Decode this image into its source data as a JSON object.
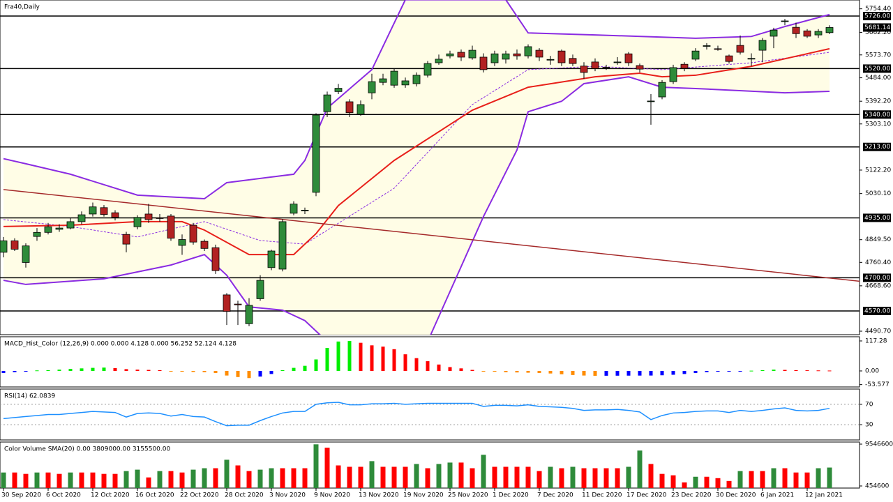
{
  "chart_data": [
    {
      "type": "candlestick",
      "title": "Fra40,Daily",
      "categories": [
        "30 Sep 2020",
        null,
        null,
        null,
        "6 Oct 2020",
        null,
        null,
        null,
        "12 Oct 2020",
        null,
        null,
        null,
        "16 Oct 2020",
        null,
        null,
        null,
        "22 Oct 2020",
        null,
        null,
        null,
        "28 Oct 2020",
        null,
        null,
        null,
        "3 Nov 2020",
        null,
        null,
        null,
        "9 Nov 2020",
        null,
        null,
        null,
        "13 Nov 2020",
        null,
        null,
        null,
        "19 Nov 2020",
        null,
        null,
        null,
        "25 Nov 2020",
        null,
        null,
        null,
        "1 Dec 2020",
        null,
        null,
        null,
        "7 Dec 2020",
        null,
        null,
        null,
        "11 Dec 2020",
        null,
        null,
        null,
        "17 Dec 2020",
        null,
        null,
        null,
        "23 Dec 2020",
        null,
        null,
        null,
        "30 Dec 2020",
        null,
        null,
        null,
        "6 Jan 2021",
        null,
        null,
        null,
        "12 Jan 2021",
        null,
        null
      ],
      "open": [
        4800,
        4845,
        4760,
        4862,
        4878,
        4890,
        4895,
        4920,
        4950,
        4975,
        4955,
        4870,
        4900,
        4950,
        4935,
        4942,
        4827,
        4906,
        4843,
        4818,
        4633,
        4597,
        4520,
        4618,
        4740,
        4734,
        4953,
        4963,
        5035,
        5351,
        5430,
        5390,
        5341,
        5425,
        5466,
        5455,
        5456,
        5461,
        5494,
        5543,
        5570,
        5584,
        5562,
        5565,
        5543,
        5557,
        5578,
        5570,
        5592,
        5554,
        5589,
        5560,
        5530,
        5546,
        5525,
        5546,
        5578,
        5532,
        5393,
        5409,
        5469,
        5537,
        5557,
        5609,
        5598,
        5570,
        5611,
        5559,
        5592,
        5647,
        5706,
        5682,
        5668,
        5652,
        5661
      ],
      "high": [
        4860,
        4855,
        4835,
        4895,
        4915,
        4910,
        4935,
        4960,
        4995,
        4985,
        4965,
        4880,
        4945,
        4990,
        4950,
        4950,
        4870,
        4915,
        4850,
        4830,
        4640,
        4610,
        4620,
        4710,
        4810,
        4930,
        5000,
        4975,
        5345,
        5430,
        5460,
        5400,
        5395,
        5500,
        5500,
        5520,
        5485,
        5505,
        5550,
        5575,
        5590,
        5595,
        5610,
        5580,
        5590,
        5590,
        5595,
        5615,
        5600,
        5570,
        5595,
        5575,
        5545,
        5560,
        5535,
        5565,
        5585,
        5540,
        5420,
        5475,
        5535,
        5545,
        5600,
        5620,
        5610,
        5575,
        5650,
        5580,
        5640,
        5680,
        5715,
        5700,
        5675,
        5675,
        5690
      ],
      "low": [
        4780,
        4805,
        4740,
        4845,
        4870,
        4880,
        4890,
        4910,
        4940,
        4940,
        4925,
        4800,
        4890,
        4915,
        4920,
        4845,
        4790,
        4830,
        4805,
        4715,
        4515,
        4515,
        4510,
        4610,
        4730,
        4725,
        4945,
        4950,
        5020,
        5330,
        5420,
        5330,
        5335,
        5400,
        5455,
        5445,
        5445,
        5450,
        5485,
        5535,
        5560,
        5550,
        5555,
        5505,
        5530,
        5540,
        5555,
        5560,
        5550,
        5535,
        5530,
        5530,
        5480,
        5510,
        5515,
        5535,
        5530,
        5505,
        5300,
        5400,
        5460,
        5510,
        5550,
        5595,
        5590,
        5540,
        5575,
        5530,
        5545,
        5600,
        5690,
        5640,
        5640,
        5640,
        5655
      ],
      "close": [
        4845,
        4812,
        4825,
        4878,
        4900,
        4895,
        4920,
        4947,
        4978,
        4948,
        4937,
        4832,
        4937,
        4928,
        4933,
        4855,
        4850,
        4840,
        4815,
        4728,
        4568,
        4594,
        4592,
        4690,
        4805,
        4920,
        4989,
        4965,
        5338,
        5417,
        5443,
        5347,
        5379,
        5469,
        5480,
        5510,
        5472,
        5494,
        5540,
        5557,
        5578,
        5565,
        5592,
        5516,
        5578,
        5578,
        5570,
        5606,
        5565,
        5556,
        5543,
        5540,
        5505,
        5520,
        5524,
        5546,
        5543,
        5518,
        5393,
        5466,
        5524,
        5521,
        5589,
        5610,
        5597,
        5548,
        5584,
        5560,
        5631,
        5671,
        5707,
        5657,
        5647,
        5666,
        5681.14
      ],
      "up_color": "#2e8b3a",
      "down_color": "#b22222",
      "band_fill": "#fffde6",
      "ylim": [
        4477,
        5789
      ],
      "yticks": [
        {
          "value": 5754.4,
          "label": "5754.40"
        },
        {
          "value": 5662.2,
          "label": "5662.20"
        },
        {
          "value": 5573.7,
          "label": "5573.70"
        },
        {
          "value": 5484,
          "label": "5484.00"
        },
        {
          "value": 5392.2,
          "label": "5392.20"
        },
        {
          "value": 5303.1,
          "label": "5303.10"
        },
        {
          "value": 5122.2,
          "label": "5122.20"
        },
        {
          "value": 5030.1,
          "label": "5030.10"
        },
        {
          "value": 4849.5,
          "label": "4849.50"
        },
        {
          "value": 4760.4,
          "label": "4760.40"
        },
        {
          "value": 4668.6,
          "label": "4668.60"
        },
        {
          "value": 4490.7,
          "label": "4490.70"
        }
      ],
      "levels": [
        {
          "value": 5726,
          "label": "5726.00"
        },
        {
          "value": 5520,
          "label": "5520.00"
        },
        {
          "value": 5340,
          "label": "5340.00"
        },
        {
          "value": 5213,
          "label": "5213.00"
        },
        {
          "value": 4935,
          "label": "4935.00"
        },
        {
          "value": 4700,
          "label": "4700.00"
        },
        {
          "value": 4570,
          "label": "4570.00"
        }
      ],
      "last_price": 5681.14,
      "overlays": [
        {
          "color": "#8a2be2",
          "width": 2,
          "x": [
            0,
            2,
            6,
            12,
            18,
            20,
            26,
            27,
            29,
            33,
            36,
            45,
            47,
            53,
            62,
            67,
            70,
            74
          ],
          "values": [
            5167,
            5147,
            5106,
            5024,
            5010,
            5073,
            5106,
            5160,
            5365,
            5516,
            5790,
            5790,
            5660,
            5652,
            5639,
            5646,
            5685,
            5732
          ]
        },
        {
          "color": "#8a2be2",
          "width": 2,
          "x": [
            0,
            2,
            9,
            12,
            15,
            18,
            20,
            22,
            25,
            27,
            29,
            38,
            43,
            46,
            47,
            50,
            52,
            56,
            59,
            62,
            70,
            74
          ],
          "values": [
            4690,
            4674,
            4696,
            4723,
            4750,
            4791,
            4710,
            4586,
            4573,
            4532,
            4450,
            4450,
            4940,
            5201,
            5351,
            5392,
            5461,
            5488,
            5447,
            5442,
            5425,
            5431
          ]
        },
        {
          "color": "#8a2be2",
          "width": 1,
          "dashed": true,
          "x": [
            0,
            6,
            12,
            16,
            18,
            23,
            27,
            30,
            35,
            42,
            47,
            53,
            59,
            67,
            74
          ],
          "values": [
            4928,
            4901,
            4860,
            4901,
            4920,
            4846,
            4832,
            4914,
            5051,
            5379,
            5516,
            5529,
            5516,
            5543,
            5584
          ]
        },
        {
          "color": "#e8201a",
          "width": 2,
          "x": [
            0,
            6,
            12,
            16,
            18,
            22,
            26,
            28,
            30,
            35,
            42,
            47,
            53,
            57,
            59,
            62,
            67,
            74
          ],
          "values": [
            4901,
            4906,
            4920,
            4920,
            4887,
            4791,
            4791,
            4873,
            4983,
            5160,
            5357,
            5447,
            5488,
            5502,
            5488,
            5494,
            5529,
            5598
          ]
        },
        {
          "color": "#a52a2a",
          "width": 1.5,
          "x": [
            0,
            77
          ],
          "values": [
            5046,
            4685
          ]
        }
      ]
    },
    {
      "type": "bar",
      "title": "MACD_Hist_Color (12,26,9) 0.000 0.000 4.128 0.000 56.252 52.124 4.128",
      "values": [
        -8,
        -5,
        -3,
        2,
        3,
        5,
        8,
        10,
        12,
        13,
        11,
        7,
        5,
        4,
        3,
        -1,
        -3,
        -4,
        -5,
        -8,
        -18,
        -24,
        -28,
        -22,
        -12,
        3,
        12,
        20,
        45,
        90,
        115,
        117,
        110,
        100,
        95,
        85,
        65,
        50,
        38,
        25,
        15,
        10,
        4,
        -1,
        -3,
        -5,
        -6,
        -7,
        -8,
        -10,
        -13,
        -16,
        -18,
        -19,
        -18.8,
        -18.6,
        -18.4,
        -18.2,
        -18,
        -17,
        -15,
        -12,
        -8,
        -5,
        -3,
        -2,
        -1,
        1,
        3,
        5,
        4,
        3,
        2.5,
        2,
        1.5
      ],
      "rise_color": "#00ee00",
      "fall_color": "#ff0000",
      "neg_rise_color": "#0000ff",
      "neg_fall_color": "#ff8c00",
      "ylim": [
        -62.7,
        133.6
      ],
      "yticks": [
        117.28,
        {
          "value": 0,
          "label": "0.00"
        },
        -53.577
      ]
    },
    {
      "type": "line",
      "title": "RSI(14) 62.0839",
      "values": [
        42,
        44,
        46,
        48,
        50,
        50,
        52,
        54,
        56,
        55,
        54,
        45,
        52,
        53,
        52,
        47,
        50,
        46,
        45,
        36,
        28,
        29,
        29,
        38,
        46,
        53,
        56,
        56,
        70,
        73,
        74,
        69,
        69,
        71,
        71,
        72,
        70,
        71,
        72,
        72,
        72,
        72,
        72,
        66,
        68,
        68,
        67,
        69,
        66,
        65,
        64,
        62,
        58,
        59,
        59,
        60,
        58,
        55,
        40,
        48,
        53,
        54,
        56,
        57,
        57,
        54,
        58,
        56,
        58,
        61,
        63,
        58,
        57,
        58,
        62.0839
      ],
      "color": "#1e90ff",
      "ylim": [
        0,
        100
      ],
      "yticks": [
        70,
        30
      ],
      "grid": true
    },
    {
      "type": "bar",
      "title": "Color Volume SMA(20) 0.00 3809000.00 3155500.00",
      "values": [
        3380000,
        3380000,
        3080000,
        3380000,
        3380000,
        3080000,
        3380000,
        3380000,
        3380000,
        3080000,
        3080000,
        3690000,
        4000000,
        2310000,
        3690000,
        3690000,
        3380000,
        4000000,
        4310000,
        4310000,
        6150000,
        4920000,
        3690000,
        4000000,
        4310000,
        4310000,
        4310000,
        4310000,
        9500000,
        8770000,
        4920000,
        4620000,
        4620000,
        5850000,
        4620000,
        4620000,
        4620000,
        5230000,
        4310000,
        5230000,
        5540000,
        5540000,
        4310000,
        7230000,
        4620000,
        4620000,
        4620000,
        4620000,
        3690000,
        4620000,
        4310000,
        4620000,
        4310000,
        4310000,
        4310000,
        4310000,
        4620000,
        8150000,
        5230000,
        3080000,
        2770000,
        1230000,
        2460000,
        2460000,
        2150000,
        1540000,
        3690000,
        3690000,
        3690000,
        4310000,
        4310000,
        3380000,
        3380000,
        4310000,
        4460000
      ],
      "rise_color": "#2e8b3a",
      "fall_color": "#ff0000",
      "ylim": [
        0,
        10000000
      ],
      "yticks": [
        9546600,
        454600
      ]
    }
  ]
}
